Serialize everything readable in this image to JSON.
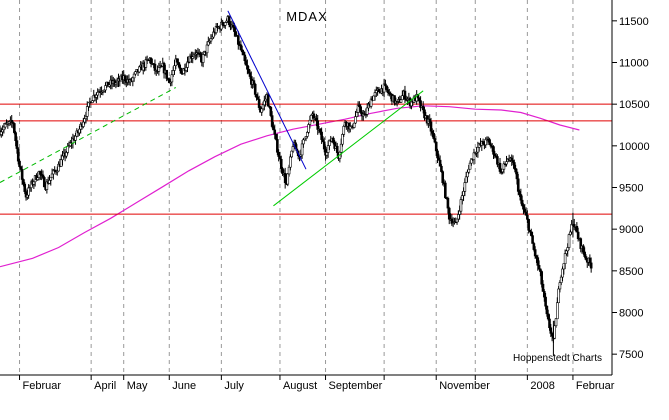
{
  "chart_data": {
    "type": "candlestick",
    "title": "MDAX",
    "credit": "Hoppenstedt Charts",
    "xlabel": "",
    "ylabel": "",
    "ylim": [
      7250,
      11750
    ],
    "y_ticks": [
      7500,
      8000,
      8500,
      9000,
      9500,
      10000,
      10500,
      11000,
      11500
    ],
    "x_months": [
      {
        "label": "Februar",
        "t": 0
      },
      {
        "label": "April",
        "t": 11
      },
      {
        "label": "May",
        "t": 16
      },
      {
        "label": "June",
        "t": 23
      },
      {
        "label": "July",
        "t": 31
      },
      {
        "label": "August",
        "t": 40
      },
      {
        "label": "September",
        "t": 47
      },
      {
        "label": "",
        "t": 56
      },
      {
        "label": "November",
        "t": 64
      },
      {
        "label": "",
        "t": 70
      },
      {
        "label": "2008",
        "t": 78
      },
      {
        "label": "Februar",
        "t": 85
      }
    ],
    "x_range": [
      -3,
      91
    ],
    "grid": "vertical dashed at month starts",
    "colors": {
      "candles": "#000000",
      "moving_average": "#e020d0",
      "support_resistance": "#e00000",
      "downtrend": "#0000cc",
      "uptrend": "#00cc00",
      "uptrend_dashed": "#00bb00",
      "grid": "#999999"
    },
    "horizontal_levels": [
      9180,
      10300,
      10500
    ],
    "trendlines": [
      {
        "kind": "uptrend_dashed",
        "from": [
          -3,
          9560
        ],
        "to": [
          24,
          10700
        ]
      },
      {
        "kind": "downtrend",
        "from": [
          32,
          11620
        ],
        "to": [
          44,
          9720
        ]
      },
      {
        "kind": "uptrend",
        "from": [
          39,
          9280
        ],
        "to": [
          62,
          10660
        ]
      }
    ],
    "moving_average": [
      {
        "t": -3,
        "v": 8550
      },
      {
        "t": 2,
        "v": 8650
      },
      {
        "t": 6,
        "v": 8780
      },
      {
        "t": 10,
        "v": 8960
      },
      {
        "t": 14,
        "v": 9130
      },
      {
        "t": 18,
        "v": 9320
      },
      {
        "t": 22,
        "v": 9510
      },
      {
        "t": 26,
        "v": 9700
      },
      {
        "t": 30,
        "v": 9870
      },
      {
        "t": 34,
        "v": 10020
      },
      {
        "t": 38,
        "v": 10120
      },
      {
        "t": 42,
        "v": 10200
      },
      {
        "t": 46,
        "v": 10260
      },
      {
        "t": 50,
        "v": 10320
      },
      {
        "t": 54,
        "v": 10390
      },
      {
        "t": 58,
        "v": 10450
      },
      {
        "t": 62,
        "v": 10480
      },
      {
        "t": 66,
        "v": 10470
      },
      {
        "t": 70,
        "v": 10440
      },
      {
        "t": 74,
        "v": 10430
      },
      {
        "t": 77,
        "v": 10400
      },
      {
        "t": 80,
        "v": 10330
      },
      {
        "t": 83,
        "v": 10250
      },
      {
        "t": 86,
        "v": 10190
      }
    ],
    "closes": [
      {
        "t": -3,
        "v": 10180
      },
      {
        "t": -2,
        "v": 10250
      },
      {
        "t": -1,
        "v": 10280
      },
      {
        "t": 0,
        "v": 9750
      },
      {
        "t": 1,
        "v": 9400
      },
      {
        "t": 2,
        "v": 9560
      },
      {
        "t": 3,
        "v": 9680
      },
      {
        "t": 4,
        "v": 9520
      },
      {
        "t": 5,
        "v": 9650
      },
      {
        "t": 6,
        "v": 9760
      },
      {
        "t": 7,
        "v": 9900
      },
      {
        "t": 8,
        "v": 10050
      },
      {
        "t": 9,
        "v": 10160
      },
      {
        "t": 10,
        "v": 10350
      },
      {
        "t": 11,
        "v": 10560
      },
      {
        "t": 12,
        "v": 10650
      },
      {
        "t": 13,
        "v": 10700
      },
      {
        "t": 14,
        "v": 10750
      },
      {
        "t": 15,
        "v": 10760
      },
      {
        "t": 16,
        "v": 10820
      },
      {
        "t": 17,
        "v": 10760
      },
      {
        "t": 18,
        "v": 10880
      },
      {
        "t": 19,
        "v": 10960
      },
      {
        "t": 20,
        "v": 11040
      },
      {
        "t": 21,
        "v": 10880
      },
      {
        "t": 22,
        "v": 10950
      },
      {
        "t": 23,
        "v": 10760
      },
      {
        "t": 24,
        "v": 11000
      },
      {
        "t": 25,
        "v": 10880
      },
      {
        "t": 26,
        "v": 11050
      },
      {
        "t": 27,
        "v": 11120
      },
      {
        "t": 28,
        "v": 11030
      },
      {
        "t": 29,
        "v": 11220
      },
      {
        "t": 30,
        "v": 11380
      },
      {
        "t": 31,
        "v": 11450
      },
      {
        "t": 32,
        "v": 11520
      },
      {
        "t": 33,
        "v": 11360
      },
      {
        "t": 34,
        "v": 11150
      },
      {
        "t": 35,
        "v": 10900
      },
      {
        "t": 36,
        "v": 10700
      },
      {
        "t": 37,
        "v": 10420
      },
      {
        "t": 38,
        "v": 10600
      },
      {
        "t": 39,
        "v": 10180
      },
      {
        "t": 40,
        "v": 9820
      },
      {
        "t": 41,
        "v": 9530
      },
      {
        "t": 42,
        "v": 10020
      },
      {
        "t": 43,
        "v": 9880
      },
      {
        "t": 44,
        "v": 10150
      },
      {
        "t": 45,
        "v": 10380
      },
      {
        "t": 46,
        "v": 10180
      },
      {
        "t": 47,
        "v": 9930
      },
      {
        "t": 48,
        "v": 10100
      },
      {
        "t": 49,
        "v": 9880
      },
      {
        "t": 50,
        "v": 10300
      },
      {
        "t": 51,
        "v": 10200
      },
      {
        "t": 52,
        "v": 10450
      },
      {
        "t": 53,
        "v": 10350
      },
      {
        "t": 54,
        "v": 10560
      },
      {
        "t": 55,
        "v": 10650
      },
      {
        "t": 56,
        "v": 10700
      },
      {
        "t": 57,
        "v": 10600
      },
      {
        "t": 58,
        "v": 10500
      },
      {
        "t": 59,
        "v": 10620
      },
      {
        "t": 60,
        "v": 10520
      },
      {
        "t": 61,
        "v": 10580
      },
      {
        "t": 62,
        "v": 10400
      },
      {
        "t": 63,
        "v": 10250
      },
      {
        "t": 64,
        "v": 9950
      },
      {
        "t": 65,
        "v": 9600
      },
      {
        "t": 66,
        "v": 9150
      },
      {
        "t": 67,
        "v": 9050
      },
      {
        "t": 68,
        "v": 9400
      },
      {
        "t": 69,
        "v": 9750
      },
      {
        "t": 70,
        "v": 9950
      },
      {
        "t": 71,
        "v": 10020
      },
      {
        "t": 72,
        "v": 10060
      },
      {
        "t": 73,
        "v": 9900
      },
      {
        "t": 74,
        "v": 9680
      },
      {
        "t": 75,
        "v": 9850
      },
      {
        "t": 76,
        "v": 9750
      },
      {
        "t": 77,
        "v": 9320
      },
      {
        "t": 78,
        "v": 9100
      },
      {
        "t": 79,
        "v": 8750
      },
      {
        "t": 80,
        "v": 8450
      },
      {
        "t": 81,
        "v": 7950
      },
      {
        "t": 82,
        "v": 7650
      },
      {
        "t": 83,
        "v": 8400
      },
      {
        "t": 84,
        "v": 8750
      },
      {
        "t": 85,
        "v": 9100
      },
      {
        "t": 86,
        "v": 8850
      },
      {
        "t": 87,
        "v": 8650
      },
      {
        "t": 88,
        "v": 8550
      }
    ]
  }
}
